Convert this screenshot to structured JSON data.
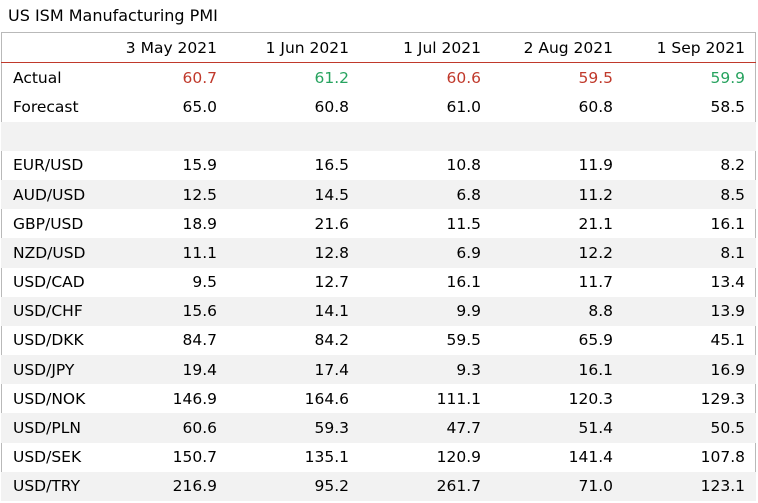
{
  "title": "US ISM Manufacturing PMI",
  "columns": [
    "3 May 2021",
    "1 Jun 2021",
    "1 Jul 2021",
    "2 Aug 2021",
    "1 Sep 2021"
  ],
  "actual": {
    "label": "Actual",
    "values": [
      {
        "v": "60.7",
        "color": "red"
      },
      {
        "v": "61.2",
        "color": "green"
      },
      {
        "v": "60.6",
        "color": "red"
      },
      {
        "v": "59.5",
        "color": "red"
      },
      {
        "v": "59.9",
        "color": "green"
      }
    ]
  },
  "forecast": {
    "label": "Forecast",
    "values": [
      "65.0",
      "60.8",
      "61.0",
      "60.8",
      "58.5"
    ]
  },
  "pairs": [
    {
      "label": "EUR/USD",
      "values": [
        "15.9",
        "16.5",
        "10.8",
        "11.9",
        "8.2"
      ]
    },
    {
      "label": "AUD/USD",
      "values": [
        "12.5",
        "14.5",
        "6.8",
        "11.2",
        "8.5"
      ]
    },
    {
      "label": "GBP/USD",
      "values": [
        "18.9",
        "21.6",
        "11.5",
        "21.1",
        "16.1"
      ]
    },
    {
      "label": "NZD/USD",
      "values": [
        "11.1",
        "12.8",
        "6.9",
        "12.2",
        "8.1"
      ]
    },
    {
      "label": "USD/CAD",
      "values": [
        "9.5",
        "12.7",
        "16.1",
        "11.7",
        "13.4"
      ]
    },
    {
      "label": "USD/CHF",
      "values": [
        "15.6",
        "14.1",
        "9.9",
        "8.8",
        "13.9"
      ]
    },
    {
      "label": "USD/DKK",
      "values": [
        "84.7",
        "84.2",
        "59.5",
        "65.9",
        "45.1"
      ]
    },
    {
      "label": "USD/JPY",
      "values": [
        "19.4",
        "17.4",
        "9.3",
        "16.1",
        "16.9"
      ]
    },
    {
      "label": "USD/NOK",
      "values": [
        "146.9",
        "164.6",
        "111.1",
        "120.3",
        "129.3"
      ]
    },
    {
      "label": "USD/PLN",
      "values": [
        "60.6",
        "59.3",
        "47.7",
        "51.4",
        "50.5"
      ]
    },
    {
      "label": "USD/SEK",
      "values": [
        "150.7",
        "135.1",
        "120.9",
        "141.4",
        "107.8"
      ]
    },
    {
      "label": "USD/TRY",
      "values": [
        "216.9",
        "95.2",
        "261.7",
        "71.0",
        "123.1"
      ]
    }
  ],
  "colors": {
    "red": "#c0392b",
    "green": "#27a35f",
    "stripe": "#f2f2f2"
  }
}
